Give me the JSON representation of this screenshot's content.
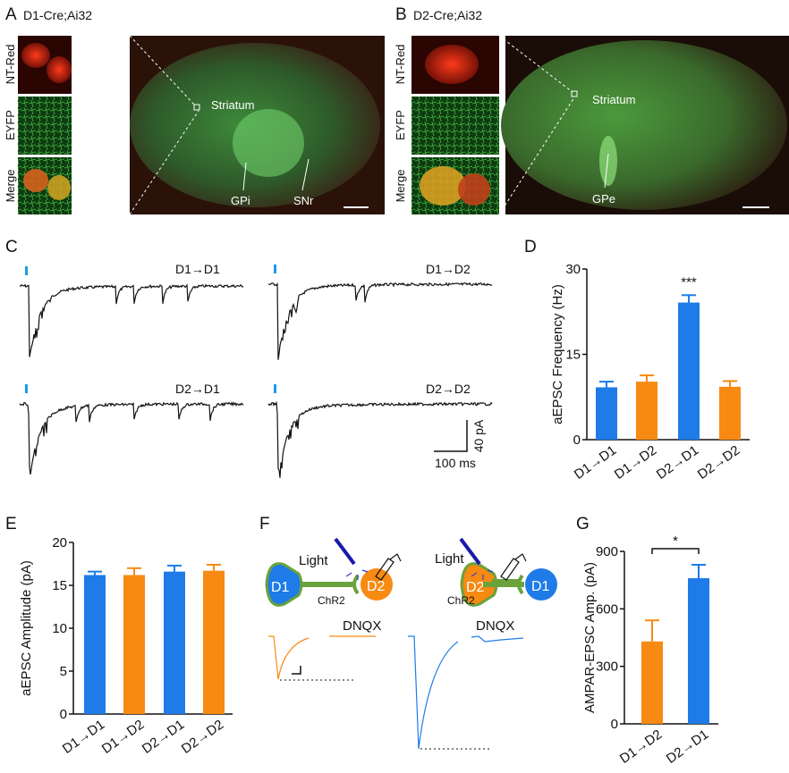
{
  "colors": {
    "d1": "#1e7be8",
    "d2": "#f78a12",
    "chr2": "#6aa23c",
    "light": "#1a1aa8"
  },
  "panels": {
    "A": {
      "letter": "A",
      "title": "D1-Cre;Ai32",
      "rows": [
        "NT-Red",
        "EYFP",
        "Merge"
      ],
      "region_labels": [
        "Striatum",
        "GPi",
        "SNr"
      ]
    },
    "B": {
      "letter": "B",
      "title": "D2-Cre;Ai32",
      "rows": [
        "NT-Red",
        "EYFP",
        "Merge"
      ],
      "region_labels": [
        "Striatum",
        "GPe"
      ]
    },
    "C": {
      "letter": "C",
      "traces": [
        "D1→D1",
        "D1→D2",
        "D2→D1",
        "D2→D2"
      ],
      "scale_y": "40 pA",
      "scale_x": "100 ms"
    },
    "F": {
      "letter": "F",
      "light": "Light",
      "chr2": "ChR2",
      "dnqx": "DNQX",
      "left_pre": "D1",
      "left_post": "D2",
      "right_pre": "D2",
      "right_post": "D1"
    }
  },
  "chart_data": [
    {
      "panel": "D",
      "type": "bar",
      "ylabel": "aEPSC Frequency (Hz)",
      "ylim": [
        0,
        30
      ],
      "yticks": [
        "0",
        "15",
        "30"
      ],
      "categories": [
        "D1→D1",
        "D1→D2",
        "D2→D1",
        "D2→D2"
      ],
      "values": [
        9.2,
        10.2,
        24.1,
        9.3
      ],
      "errors": [
        1.0,
        1.1,
        1.3,
        1.0
      ],
      "bar_colors": [
        "#1e7be8",
        "#f78a12",
        "#1e7be8",
        "#f78a12"
      ],
      "annotations": [
        {
          "category": "D2→D1",
          "text": "***"
        }
      ]
    },
    {
      "panel": "E",
      "type": "bar",
      "ylabel": "aEPSC Amplitude (pA)",
      "ylim": [
        0,
        20
      ],
      "yticks": [
        "0",
        "5",
        "10",
        "15",
        "20"
      ],
      "categories": [
        "D1→D1",
        "D1→D2",
        "D2→D1",
        "D2→D2"
      ],
      "values": [
        16.2,
        16.2,
        16.6,
        16.7
      ],
      "errors": [
        0.4,
        0.8,
        0.7,
        0.7
      ],
      "bar_colors": [
        "#1e7be8",
        "#f78a12",
        "#1e7be8",
        "#f78a12"
      ],
      "annotations": []
    },
    {
      "panel": "G",
      "type": "bar",
      "ylabel": "AMPAR-EPSC Amp. (pA)",
      "ylim": [
        0,
        900
      ],
      "yticks": [
        "0",
        "300",
        "600",
        "900"
      ],
      "categories": [
        "D1→D2",
        "D2→D1"
      ],
      "values": [
        430,
        760
      ],
      "errors": [
        110,
        70
      ],
      "bar_colors": [
        "#f78a12",
        "#1e7be8"
      ],
      "annotations": [
        {
          "bracket": [
            "D1→D2",
            "D2→D1"
          ],
          "text": "*"
        }
      ]
    }
  ]
}
